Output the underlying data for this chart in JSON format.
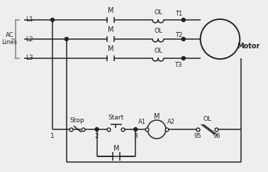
{
  "bg_color": "#eeeeee",
  "line_color": "#222222",
  "brace_color": "#888888",
  "figsize": [
    3.78,
    2.42
  ],
  "dpi": 100,
  "ac_label": [
    "AC",
    "Lines"
  ],
  "L_labels": [
    "L1",
    "L2",
    "L3"
  ],
  "M_label": "M",
  "OL_label": "OL",
  "T_labels": [
    "T1",
    "T2",
    "T3"
  ],
  "Motor_label": "Motor",
  "Stop_label": "Stop",
  "Start_label": "Start",
  "A1_label": "A1",
  "A2_label": "A2",
  "nums": [
    "1",
    "2",
    "3",
    "95",
    "96"
  ]
}
